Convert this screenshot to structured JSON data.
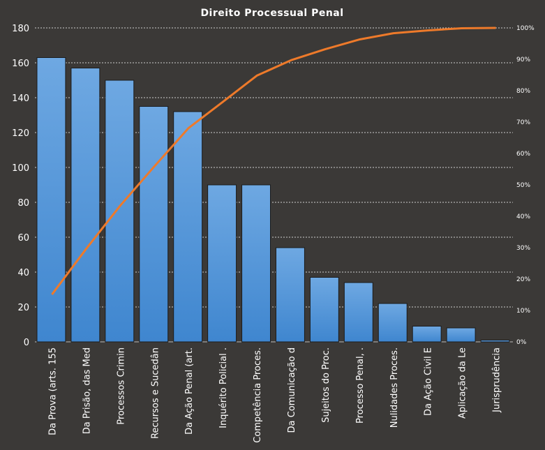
{
  "chart_data": {
    "type": "bar",
    "title": "Direito Processual Penal",
    "categories": [
      "Da Prova (arts. 155",
      "Da Prisão, das Med",
      "Processos Crimin",
      "Recursos e Sucedân",
      "Da Ação Penal (art.",
      "Inquérito Policial .",
      "Competência Proces.",
      "Da Comunicação d",
      "Sujeitos do Proc.",
      "Processo Penal, .",
      "Nulidades Proces.",
      "Da Ação Civil E",
      "Aplicação da Le",
      "Jurisprudência"
    ],
    "values": [
      163,
      157,
      150,
      135,
      132,
      90,
      90,
      54,
      37,
      34,
      22,
      9,
      8,
      1
    ],
    "cumulative_percent": [
      15.1,
      29.6,
      43.4,
      55.9,
      68.1,
      76.4,
      84.8,
      89.7,
      93.2,
      96.3,
      98.3,
      99.2,
      99.9,
      100
    ],
    "ylim": [
      0,
      180
    ],
    "yticks": [
      0,
      20,
      40,
      60,
      80,
      100,
      120,
      140,
      160,
      180
    ],
    "y2lim": [
      0,
      100
    ],
    "y2ticks": [
      "0%",
      "10%",
      "20%",
      "30%",
      "40%",
      "50%",
      "60%",
      "70%",
      "80%",
      "90%",
      "100%"
    ],
    "grid": true,
    "colors": {
      "bar": "#4a90d6",
      "line": "#ee7a2a",
      "background": "#3b3937"
    }
  }
}
